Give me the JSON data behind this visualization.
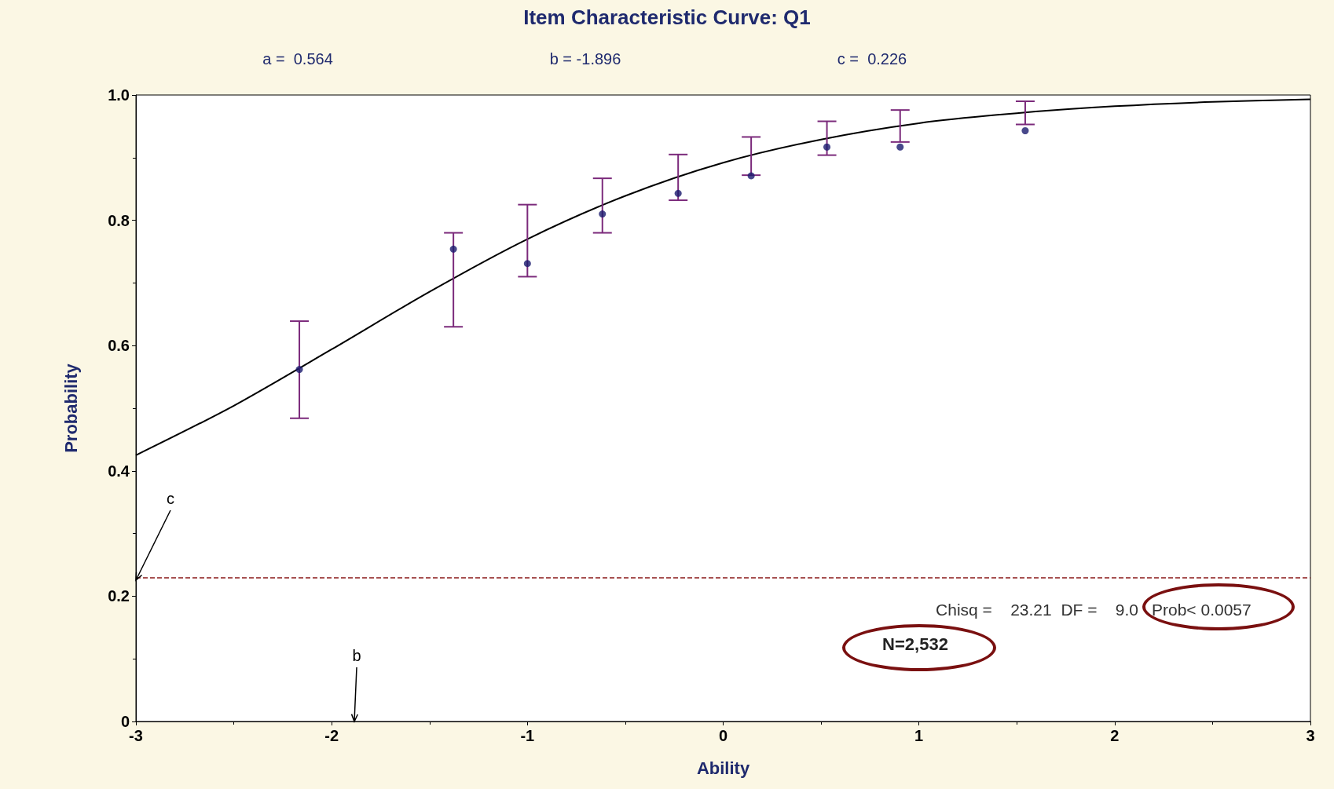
{
  "chart_data": {
    "type": "scatter",
    "title": "Item Characteristic Curve: Q1",
    "xlabel": "Ability",
    "ylabel": "Probability",
    "xlim": [
      -3,
      3
    ],
    "xticks": [
      -3,
      -2,
      -1,
      0,
      1,
      2,
      3
    ],
    "ylim": [
      0,
      1
    ],
    "yticks": [
      {
        "value": 0,
        "label": "0"
      },
      {
        "value": 0.2,
        "label": "0.2"
      },
      {
        "value": 0.4,
        "label": "0.4"
      },
      {
        "value": 0.6,
        "label": "0.6"
      },
      {
        "value": 0.8,
        "label": "0.8"
      },
      {
        "value": 1,
        "label": "1.0"
      }
    ],
    "grid": false,
    "series": [
      {
        "color": "#1a1a6e",
        "marker": "circle",
        "x": [
          -2.165,
          -1.378,
          -1.0,
          -0.617,
          -0.23,
          0.143,
          0.53,
          0.904,
          1.543
        ],
        "values": [
          0.562,
          0.754,
          0.731,
          0.81,
          0.843,
          0.871,
          0.917,
          0.917,
          0.943
        ],
        "errors": [
          [
            0.484,
            0.639
          ],
          [
            0.63,
            0.78
          ],
          [
            0.71,
            0.825
          ],
          [
            0.78,
            0.867
          ],
          [
            0.832,
            0.905
          ],
          [
            0.872,
            0.933
          ],
          [
            0.904,
            0.958
          ],
          [
            0.925,
            0.976
          ],
          [
            0.953,
            0.99
          ]
        ]
      },
      {
        "type": "line",
        "color": "#000000",
        "marker": "none",
        "line_style": "solid",
        "x": [
          -3,
          -2.5,
          -2,
          -1.5,
          -1,
          -0.5,
          0,
          0.5,
          1,
          1.5,
          2,
          2.5,
          3
        ],
        "values": [
          0.425,
          0.504,
          0.594,
          0.686,
          0.77,
          0.839,
          0.892,
          0.929,
          0.955,
          0.971,
          0.982,
          0.989,
          0.993
        ]
      }
    ],
    "ref_lines": [
      {
        "axis": "y",
        "value": 0.226,
        "color": "#8b1a1a",
        "line_style": "dashed"
      }
    ],
    "annotations": [
      "a =  0.564",
      "b = -1.896",
      "c =  0.226",
      "Chisq =    23.21  DF =    9.0",
      "Prob< 0.0057",
      "N=2,532",
      {
        "text": "c",
        "x": -3,
        "y": 0.226
      },
      "b"
    ]
  }
}
